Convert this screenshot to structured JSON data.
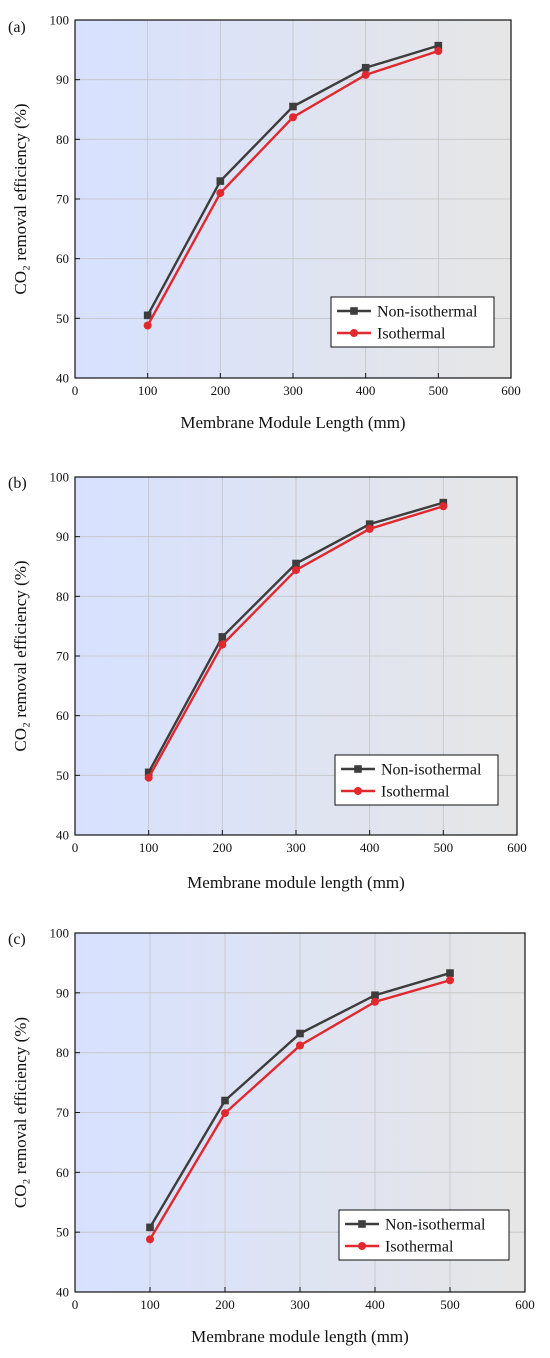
{
  "chart_data": [
    {
      "type": "line",
      "panel_label": "(a)",
      "xlabel": "Membrane Module Length (mm)",
      "ylabel": "CO₂ removal efficiency (%)",
      "xlim": [
        0,
        600
      ],
      "ylim": [
        40,
        100
      ],
      "x_ticks": [
        "0",
        "100",
        "200",
        "300",
        "400",
        "500",
        "600"
      ],
      "y_ticks": [
        "40",
        "50",
        "60",
        "70",
        "80",
        "90",
        "100"
      ],
      "x": [
        100,
        200,
        300,
        400,
        500
      ],
      "series": [
        {
          "name": "Non-isothermal",
          "marker": "square",
          "color": "#3d3d3d",
          "values": [
            50.5,
            73.0,
            85.5,
            92.0,
            95.7
          ]
        },
        {
          "name": "Isothermal",
          "marker": "circle",
          "color": "#e0282e",
          "values": [
            48.8,
            71.0,
            83.7,
            90.8,
            94.8
          ]
        }
      ],
      "legend": "bottom-right",
      "grid": true
    },
    {
      "type": "line",
      "panel_label": "(b)",
      "xlabel": "Membrane module length (mm)",
      "ylabel": "CO₂ removal efficiency (%)",
      "xlim": [
        0,
        600
      ],
      "ylim": [
        40,
        100
      ],
      "x_ticks": [
        "0",
        "100",
        "200",
        "300",
        "400",
        "500",
        "600"
      ],
      "y_ticks": [
        "40",
        "50",
        "60",
        "70",
        "80",
        "90",
        "100"
      ],
      "x": [
        100,
        200,
        300,
        400,
        500
      ],
      "series": [
        {
          "name": "Non-isothermal",
          "marker": "square",
          "color": "#3d3d3d",
          "values": [
            50.5,
            73.2,
            85.5,
            92.1,
            95.7
          ]
        },
        {
          "name": "Isothermal",
          "marker": "circle",
          "color": "#e0282e",
          "values": [
            49.6,
            71.9,
            84.4,
            91.3,
            95.1
          ]
        }
      ],
      "legend": "bottom-right",
      "grid": true
    },
    {
      "type": "line",
      "panel_label": "(c)",
      "xlabel": "Membrane module length (mm)",
      "ylabel": "CO₂ removal efficiency (%)",
      "xlim": [
        0,
        600
      ],
      "ylim": [
        40,
        100
      ],
      "x_ticks": [
        "0",
        "100",
        "200",
        "300",
        "400",
        "500",
        "600"
      ],
      "y_ticks": [
        "40",
        "50",
        "60",
        "70",
        "80",
        "90",
        "100"
      ],
      "x": [
        100,
        200,
        300,
        400,
        500
      ],
      "series": [
        {
          "name": "Non-isothermal",
          "marker": "square",
          "color": "#3d3d3d",
          "values": [
            50.8,
            72.0,
            83.2,
            89.6,
            93.3
          ]
        },
        {
          "name": "Isothermal",
          "marker": "circle",
          "color": "#e0282e",
          "values": [
            48.8,
            69.9,
            81.2,
            88.5,
            92.1
          ]
        }
      ],
      "legend": "bottom-right",
      "grid": true
    }
  ]
}
